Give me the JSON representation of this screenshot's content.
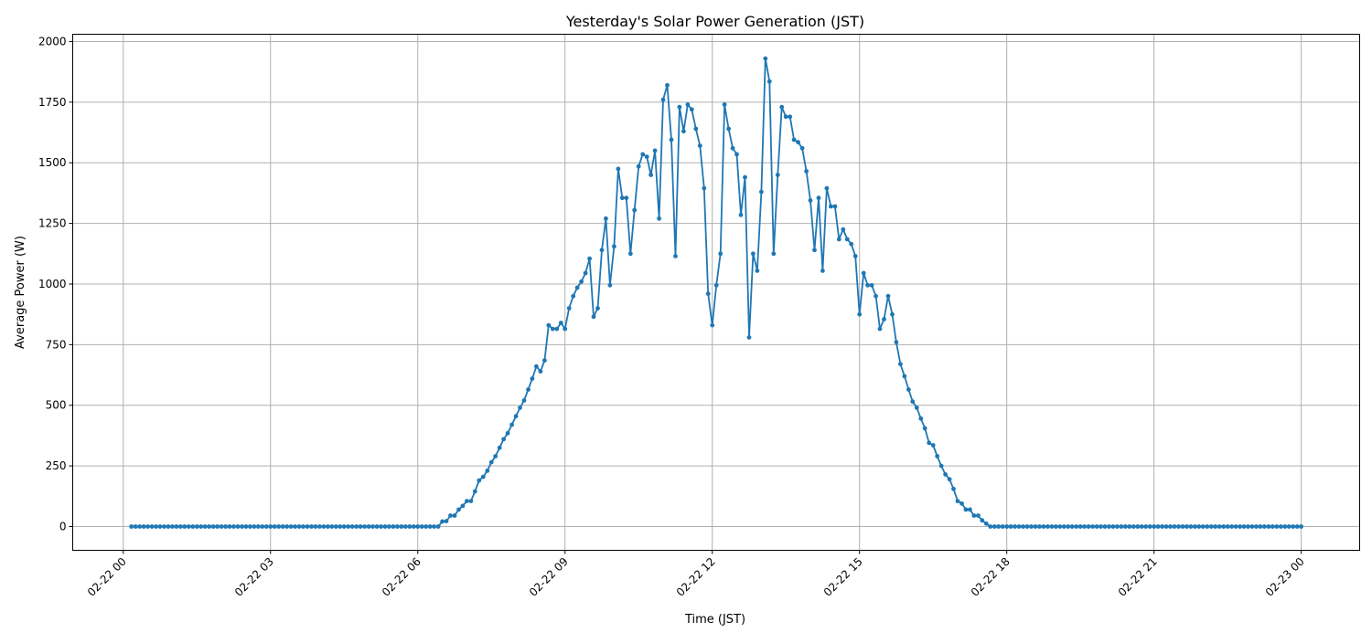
{
  "chart_data": {
    "type": "line",
    "title": "Yesterday's Solar Power Generation (JST)",
    "xlabel": "Time (JST)",
    "ylabel": "Average Power (W)",
    "x_start": "02-22 00:10",
    "x_step_minutes": 5,
    "x_ticks": [
      "02-22 00",
      "02-22 03",
      "02-22 06",
      "02-22 09",
      "02-22 12",
      "02-22 15",
      "02-22 18",
      "02-22 21",
      "02-23 00"
    ],
    "y_ticks": [
      "0",
      "250",
      "500",
      "750",
      "1000",
      "1250",
      "1500",
      "1750",
      "2000"
    ],
    "ylim": [
      -98,
      2030
    ],
    "xlim_hours": [
      -1.03,
      25.19
    ],
    "grid": true,
    "marker": "circle",
    "color": "#1f77b4",
    "series": [
      {
        "values": [
          0,
          0,
          0,
          0,
          0,
          0,
          0,
          0,
          0,
          0,
          0,
          0,
          0,
          0,
          0,
          0,
          0,
          0,
          0,
          0,
          0,
          0,
          0,
          0,
          0,
          0,
          0,
          0,
          0,
          0,
          0,
          0,
          0,
          0,
          0,
          0,
          0,
          0,
          0,
          0,
          0,
          0,
          0,
          0,
          0,
          0,
          0,
          0,
          0,
          0,
          0,
          0,
          0,
          0,
          0,
          0,
          0,
          0,
          0,
          0,
          0,
          0,
          0,
          0,
          0,
          0,
          0,
          0,
          0,
          0,
          0,
          0,
          0,
          0,
          0,
          0,
          21,
          22,
          45,
          45,
          70,
          85,
          105,
          105,
          145,
          190,
          205,
          230,
          265,
          290,
          325,
          360,
          385,
          420,
          455,
          490,
          520,
          565,
          610,
          660,
          640,
          685,
          830,
          815,
          815,
          840,
          815,
          900,
          950,
          985,
          1010,
          1045,
          1105,
          865,
          900,
          1140,
          1270,
          995,
          1155,
          1475,
          1355,
          1355,
          1125,
          1305,
          1485,
          1535,
          1525,
          1450,
          1550,
          1270,
          1760,
          1820,
          1595,
          1115,
          1730,
          1630,
          1740,
          1720,
          1640,
          1570,
          1395,
          960,
          830,
          995,
          1125,
          1740,
          1640,
          1560,
          1535,
          1285,
          1440,
          780,
          1125,
          1055,
          1380,
          1930,
          1835,
          1125,
          1450,
          1730,
          1690,
          1690,
          1595,
          1585,
          1560,
          1465,
          1345,
          1140,
          1355,
          1055,
          1395,
          1320,
          1320,
          1185,
          1225,
          1185,
          1165,
          1115,
          875,
          1045,
          995,
          995,
          950,
          815,
          855,
          950,
          875,
          760,
          670,
          620,
          565,
          515,
          490,
          445,
          405,
          345,
          335,
          290,
          250,
          215,
          195,
          155,
          105,
          95,
          70,
          70,
          45,
          45,
          25,
          12,
          0,
          0,
          0,
          0,
          0,
          0,
          0,
          0,
          0,
          0,
          0,
          0,
          0,
          0,
          0,
          0,
          0,
          0,
          0,
          0,
          0,
          0,
          0,
          0,
          0,
          0,
          0,
          0,
          0,
          0,
          0,
          0,
          0,
          0,
          0,
          0,
          0,
          0,
          0,
          0,
          0,
          0,
          0,
          0,
          0,
          0,
          0,
          0,
          0,
          0,
          0,
          0,
          0,
          0,
          0,
          0,
          0,
          0,
          0,
          0,
          0,
          0,
          0,
          0,
          0,
          0,
          0,
          0,
          0,
          0,
          0,
          0,
          0,
          0,
          0,
          0,
          0
        ]
      }
    ]
  }
}
